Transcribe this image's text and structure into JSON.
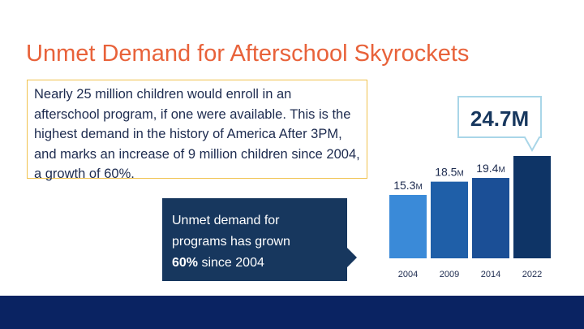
{
  "title": "Unmet Demand for Afterschool Skyrockets",
  "textbox": "Nearly 25 million children would enroll in an afterschool program, if one were available.  This is the highest demand in the history of America After 3PM, and marks an increase of 9 million children since 2004, a growth of 60%.",
  "callout": {
    "line1": "Unmet demand for",
    "line2": "programs has grown",
    "bold": "60%",
    "rest": " since 2004"
  },
  "highlight_label": "24.7M",
  "chart_data": {
    "type": "bar",
    "categories": [
      "2004",
      "2009",
      "2014",
      "2022"
    ],
    "values": [
      15.3,
      18.5,
      19.4,
      24.7
    ],
    "labels": [
      "15.3M",
      "18.5M",
      "19.4M",
      "24.7M"
    ],
    "colors": [
      "#3a8ad8",
      "#1f5fa8",
      "#1b4f96",
      "#0e3466"
    ],
    "unit": "million children",
    "highlight_index": 3
  }
}
